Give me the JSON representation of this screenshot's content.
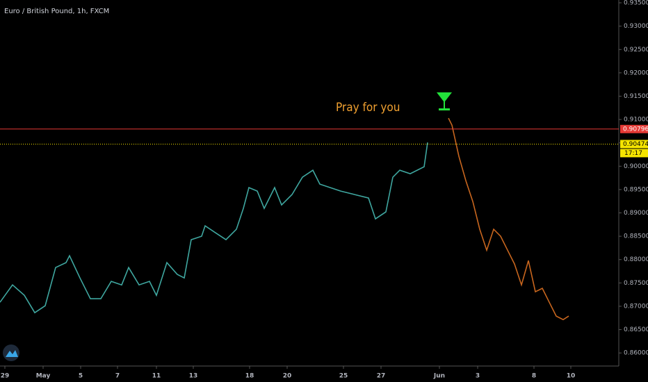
{
  "chart_data": {
    "type": "line",
    "title": "Euro / British Pound, 1h, FXCM",
    "annotation": "Pray for you",
    "countdown": "17:17",
    "xlim": [
      0,
      890
    ],
    "ylim": [
      0.8572,
      0.9356
    ],
    "xticks": [
      {
        "value": 7,
        "label": "29"
      },
      {
        "value": 62,
        "label": "May"
      },
      {
        "value": 116,
        "label": "5"
      },
      {
        "value": 169,
        "label": "7"
      },
      {
        "value": 225,
        "label": "11"
      },
      {
        "value": 278,
        "label": "13"
      },
      {
        "value": 359,
        "label": "18"
      },
      {
        "value": 413,
        "label": "20"
      },
      {
        "value": 494,
        "label": "25"
      },
      {
        "value": 548,
        "label": "27"
      },
      {
        "value": 632,
        "label": "Jun"
      },
      {
        "value": 687,
        "label": "3"
      },
      {
        "value": 768,
        "label": "8"
      },
      {
        "value": 821,
        "label": "10"
      }
    ],
    "yticks": [
      {
        "value": 0.86,
        "label": "0.86000"
      },
      {
        "value": 0.865,
        "label": "0.86500"
      },
      {
        "value": 0.87,
        "label": "0.87000"
      },
      {
        "value": 0.875,
        "label": "0.87500"
      },
      {
        "value": 0.88,
        "label": "0.88000"
      },
      {
        "value": 0.885,
        "label": "0.88500"
      },
      {
        "value": 0.89,
        "label": "0.89000"
      },
      {
        "value": 0.895,
        "label": "0.89500"
      },
      {
        "value": 0.9,
        "label": "0.90000"
      },
      {
        "value": 0.905,
        "label": "0.90500"
      },
      {
        "value": 0.91,
        "label": "0.91000"
      },
      {
        "value": 0.915,
        "label": "0.91500"
      },
      {
        "value": 0.92,
        "label": "0.92000"
      },
      {
        "value": 0.925,
        "label": "0.92500"
      },
      {
        "value": 0.93,
        "label": "0.93000"
      },
      {
        "value": 0.935,
        "label": "0.93500"
      }
    ],
    "series": [
      {
        "color": "#3fa7a0",
        "x": [
          0,
          18,
          35,
          50,
          65,
          80,
          95,
          100,
          115,
          130,
          145,
          160,
          175,
          185,
          200,
          215,
          225,
          240,
          255,
          265,
          275,
          290,
          295,
          310,
          325,
          340,
          350,
          358,
          370,
          380,
          395,
          405,
          420,
          435,
          450,
          460,
          475,
          490,
          510,
          530,
          540,
          555,
          565,
          575,
          590,
          610,
          615
        ],
        "values": [
          0.87086,
          0.87458,
          0.87235,
          0.86863,
          0.87012,
          0.8783,
          0.87935,
          0.88083,
          0.87607,
          0.87161,
          0.87161,
          0.87533,
          0.87458,
          0.8783,
          0.87458,
          0.87533,
          0.87235,
          0.87935,
          0.87682,
          0.87607,
          0.88426,
          0.885,
          0.88723,
          0.88574,
          0.88426,
          0.88649,
          0.89095,
          0.89542,
          0.89467,
          0.89095,
          0.89542,
          0.8917,
          0.89393,
          0.89765,
          0.89914,
          0.89616,
          0.89542,
          0.89467,
          0.89393,
          0.89318,
          0.88872,
          0.89021,
          0.89765,
          0.89914,
          0.89839,
          0.89988,
          0.90509
        ]
      },
      {
        "color": "#c8661e",
        "x": [
          645,
          650,
          660,
          670,
          680,
          690,
          700,
          710,
          720,
          730,
          740,
          750,
          760,
          770,
          780,
          790,
          800,
          810,
          818
        ],
        "values": [
          0.9103,
          0.90881,
          0.90211,
          0.8969,
          0.89244,
          0.88649,
          0.88202,
          0.88649,
          0.885,
          0.88202,
          0.87905,
          0.87458,
          0.87979,
          0.8731,
          0.87384,
          0.87086,
          0.86789,
          0.86714,
          0.86789
        ]
      }
    ],
    "price_lines": [
      {
        "value": 0.90796,
        "label": "0.90796",
        "color": "#e53935",
        "style": "solid"
      },
      {
        "value": 0.90474,
        "label": "0.90474",
        "color": "#f5e400",
        "style": "dotted"
      }
    ]
  }
}
